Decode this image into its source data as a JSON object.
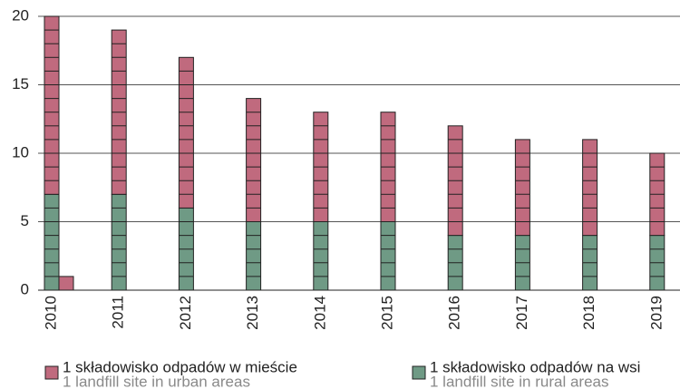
{
  "chart_data": {
    "type": "bar",
    "stacked": true,
    "categories": [
      "2010",
      "2011",
      "2012",
      "2013",
      "2014",
      "2015",
      "2016",
      "2017",
      "2018",
      "2019"
    ],
    "series": [
      {
        "name": "1 składowisko odpadów na wsi",
        "subname": "1 landfill site in rural areas",
        "color": "#6f9a85",
        "values": [
          7,
          7,
          6,
          5,
          5,
          5,
          4,
          4,
          4,
          4
        ]
      },
      {
        "name": "1 składowisko odpadów w mieście",
        "subname": "1 landfill site in urban areas",
        "color": "#c06a7e",
        "values": [
          13,
          12,
          11,
          9,
          8,
          8,
          8,
          7,
          7,
          6
        ]
      },
      {
        "color": "#c06a7e",
        "values": [
          1,
          null,
          null,
          null,
          null,
          null,
          null,
          null,
          null,
          null
        ]
      }
    ],
    "ylim": [
      0,
      20
    ],
    "yticks": [
      0,
      5,
      10,
      15,
      20
    ],
    "grid": true
  }
}
